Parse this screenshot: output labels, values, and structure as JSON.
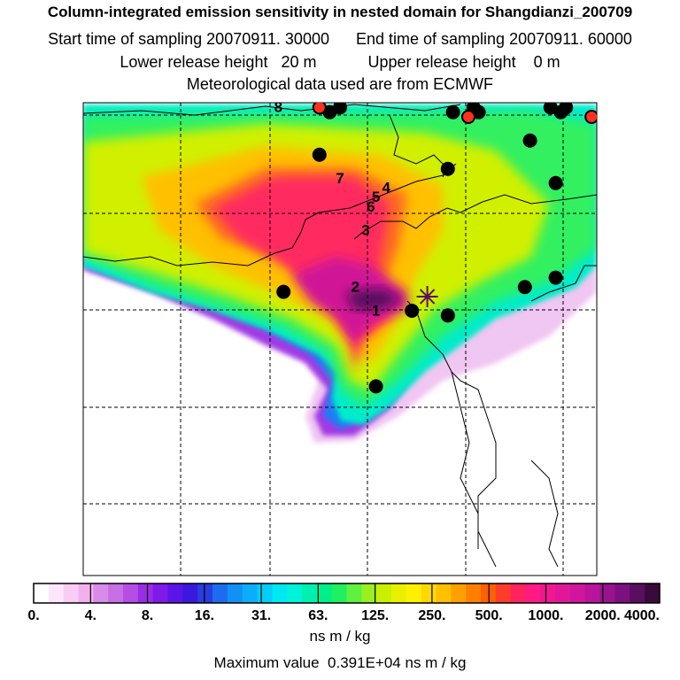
{
  "header": {
    "title": "Column-integrated emission sensitivity in nested domain for Shangdianzi_200709",
    "start_label": "Start time of sampling",
    "start_value": "20070911. 30000",
    "end_label": "End time of sampling",
    "end_value": "20070911. 60000",
    "lower_label": "Lower release height",
    "lower_value": "20 m",
    "upper_label": "Upper release height",
    "upper_value": "0 m",
    "met": "Meteorological data used are from ECMWF"
  },
  "map": {
    "type": "heatmap",
    "age_class_labels": [
      {
        "label": "1",
        "x": 0.57,
        "y": 0.45
      },
      {
        "label": "2",
        "x": 0.53,
        "y": 0.4
      },
      {
        "label": "3",
        "x": 0.55,
        "y": 0.28
      },
      {
        "label": "4",
        "x": 0.59,
        "y": 0.19
      },
      {
        "label": "5",
        "x": 0.57,
        "y": 0.21
      },
      {
        "label": "6",
        "x": 0.56,
        "y": 0.23
      },
      {
        "label": "7",
        "x": 0.5,
        "y": 0.17
      },
      {
        "label": "8",
        "x": 0.38,
        "y": 0.02
      }
    ],
    "release_site": {
      "name": "Shangdianzi",
      "x": 0.67,
      "y": 0.41
    },
    "stations_black": [
      {
        "x": 0.48,
        "y": 0.02
      },
      {
        "x": 0.5,
        "y": 0.01
      },
      {
        "x": 0.46,
        "y": 0.11
      },
      {
        "x": 0.72,
        "y": 0.02
      },
      {
        "x": 0.76,
        "y": 0.01
      },
      {
        "x": 0.77,
        "y": 0.02
      },
      {
        "x": 0.91,
        "y": 0.01
      },
      {
        "x": 0.93,
        "y": 0.02
      },
      {
        "x": 0.94,
        "y": 0.01
      },
      {
        "x": 0.87,
        "y": 0.08
      },
      {
        "x": 0.71,
        "y": 0.14
      },
      {
        "x": 0.92,
        "y": 0.17
      },
      {
        "x": 0.39,
        "y": 0.4
      },
      {
        "x": 0.64,
        "y": 0.44
      },
      {
        "x": 0.71,
        "y": 0.45
      },
      {
        "x": 0.86,
        "y": 0.39
      },
      {
        "x": 0.92,
        "y": 0.37
      },
      {
        "x": 0.57,
        "y": 0.6
      }
    ],
    "stations_red": [
      {
        "x": 0.46,
        "y": 0.01
      },
      {
        "x": 0.75,
        "y": 0.03
      },
      {
        "x": 0.99,
        "y": 0.03
      }
    ]
  },
  "colorbar": {
    "tick_labels": [
      "0.",
      "4.",
      "8.",
      "16.",
      "31.",
      "63.",
      "125.",
      "250.",
      "500.",
      "1000.",
      "2000.",
      "4000."
    ],
    "colors": [
      "#ffffff",
      "#fde6fb",
      "#f8cdf5",
      "#f2b1ee",
      "#d98bea",
      "#c86fe6",
      "#b54fe3",
      "#9a2ce6",
      "#7f1ae8",
      "#5d14e8",
      "#3b18e0",
      "#2a3de0",
      "#1c6cf0",
      "#1290f4",
      "#0aaefa",
      "#04cef8",
      "#00e8f2",
      "#00f2d8",
      "#00f0b0",
      "#00f088",
      "#20f060",
      "#60f040",
      "#98f020",
      "#c8f000",
      "#e8f000",
      "#fff000",
      "#ffd800",
      "#ffc000",
      "#ffa000",
      "#ff8000",
      "#ff6000",
      "#ff3c2c",
      "#ff2460",
      "#ff1a84",
      "#f01890",
      "#e01898",
      "#d0169c",
      "#b8149c",
      "#9a1290",
      "#7c1080",
      "#5a0e60",
      "#3a0a3c"
    ],
    "unit": "ns m / kg",
    "max_label": "Maximum value",
    "max_value": "0.391E+04 ns m / kg"
  }
}
